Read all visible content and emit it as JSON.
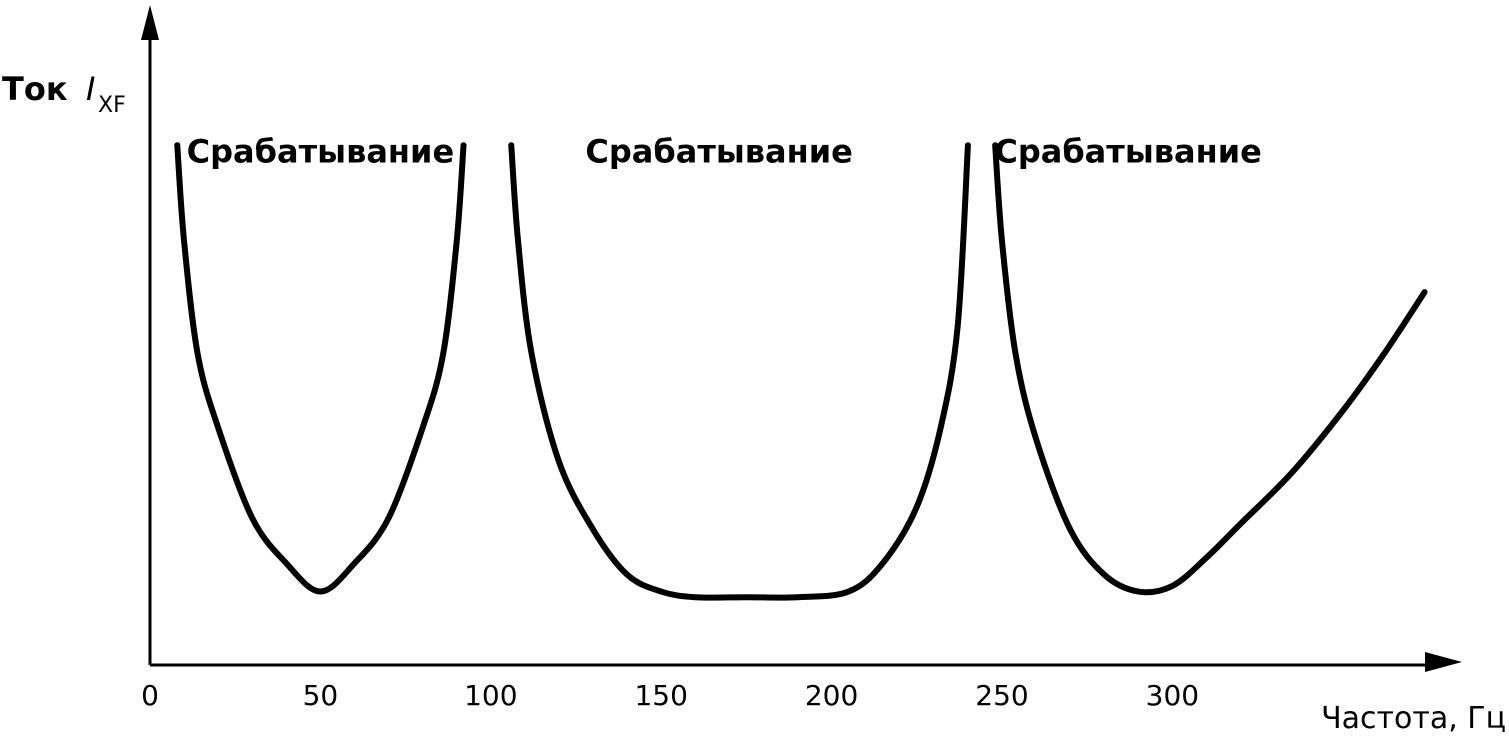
{
  "chart_data": {
    "type": "line",
    "xlabel": "Частота, Гц",
    "ylabel": {
      "prefix": "Ток",
      "symbol": "I",
      "subscript": "XF"
    },
    "x_ticks": [
      "0",
      "50",
      "100",
      "150",
      "200",
      "250",
      "300"
    ],
    "xlim": [
      0,
      375
    ],
    "ylim": [
      0,
      1
    ],
    "grid": false,
    "annotations": [
      {
        "text": "Срабатывание",
        "x": 50,
        "y": 0.9
      },
      {
        "text": "Срабатывание",
        "x": 167,
        "y": 0.9
      },
      {
        "text": "Срабатывание",
        "x": 287,
        "y": 0.9
      }
    ],
    "series": [
      {
        "values": [
          [
            8,
            0.92
          ],
          [
            10,
            0.75
          ],
          [
            14,
            0.55
          ],
          [
            20,
            0.42
          ],
          [
            30,
            0.26
          ],
          [
            40,
            0.18
          ],
          [
            50,
            0.13
          ],
          [
            60,
            0.18
          ],
          [
            70,
            0.26
          ],
          [
            80,
            0.42
          ],
          [
            86,
            0.55
          ],
          [
            90,
            0.75
          ],
          [
            92,
            0.92
          ]
        ]
      },
      {
        "values": [
          [
            106,
            0.92
          ],
          [
            108,
            0.75
          ],
          [
            112,
            0.55
          ],
          [
            120,
            0.36
          ],
          [
            130,
            0.24
          ],
          [
            140,
            0.16
          ],
          [
            150,
            0.13
          ],
          [
            160,
            0.12
          ],
          [
            175,
            0.12
          ],
          [
            190,
            0.12
          ],
          [
            205,
            0.13
          ],
          [
            215,
            0.18
          ],
          [
            225,
            0.28
          ],
          [
            232,
            0.42
          ],
          [
            237,
            0.6
          ],
          [
            240,
            0.92
          ]
        ]
      },
      {
        "values": [
          [
            248,
            0.92
          ],
          [
            250,
            0.75
          ],
          [
            254,
            0.55
          ],
          [
            260,
            0.4
          ],
          [
            270,
            0.24
          ],
          [
            280,
            0.16
          ],
          [
            290,
            0.13
          ],
          [
            300,
            0.14
          ],
          [
            310,
            0.19
          ],
          [
            320,
            0.25
          ],
          [
            335,
            0.34
          ],
          [
            350,
            0.45
          ],
          [
            362,
            0.55
          ],
          [
            374,
            0.66
          ]
        ]
      }
    ]
  }
}
